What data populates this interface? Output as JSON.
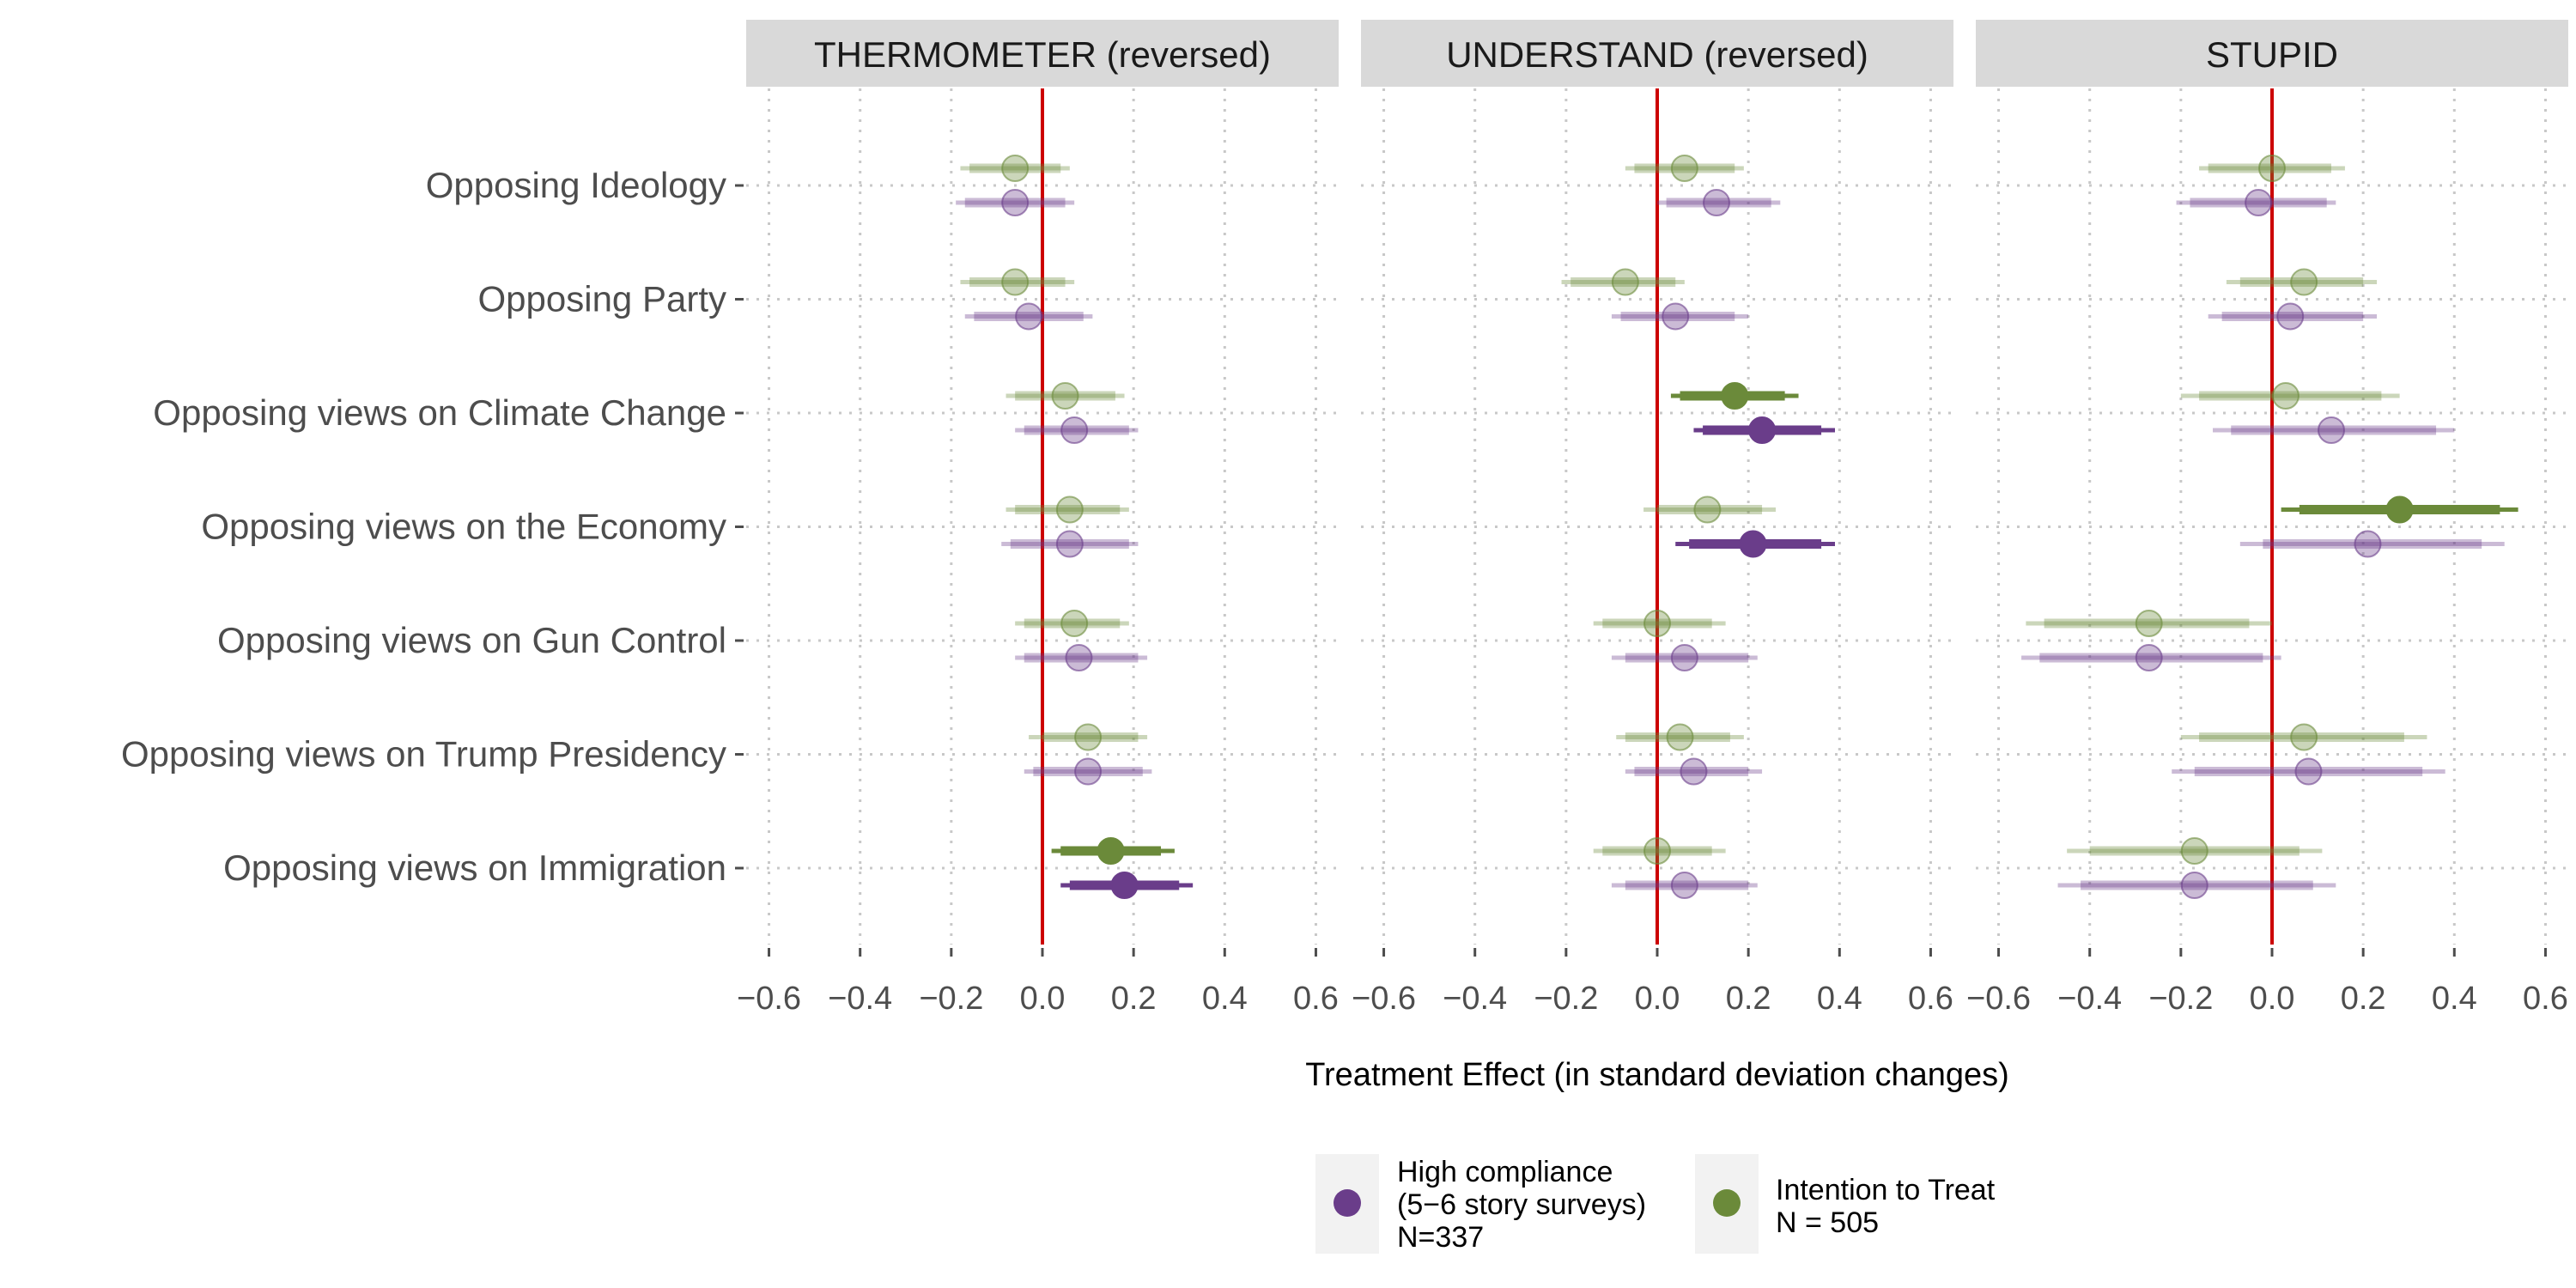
{
  "chart_data": {
    "type": "scatter",
    "subtype": "forest-plot (point estimate with 90% and 95% interval bars)",
    "panels": [
      {
        "title": "THERMOMETER (reversed)"
      },
      {
        "title": "UNDERSTAND (reversed)"
      },
      {
        "title": "STUPID"
      }
    ],
    "categories": [
      "Opposing Ideology",
      "Opposing Party",
      "Opposing views on Climate Change",
      "Opposing views on the Economy",
      "Opposing views on Gun Control",
      "Opposing views on Trump Presidency",
      "Opposing views on Immigration"
    ],
    "xlabel": "Treatment Effect (in standard deviation changes)",
    "xlim": [
      -0.65,
      0.65
    ],
    "xticks": [
      "−0.6",
      "−0.4",
      "−0.2",
      "0.0",
      "0.2",
      "0.4",
      "0.6"
    ],
    "xtick_values": [
      -0.6,
      -0.4,
      -0.2,
      0.0,
      0.2,
      0.4,
      0.6
    ],
    "reference_line": {
      "x": 0,
      "color": "#cc0000"
    },
    "grid": "dotted",
    "legend_position": "bottom",
    "series": [
      {
        "name": "High compliance\n(5−6 story surveys)\nN=337",
        "legend_lines": [
          "High compliance",
          "(5−6 story surveys)",
          "N=337"
        ],
        "color": "#6a3d8a",
        "estimates": [
          [
            [
              -0.06,
              -0.17,
              0.05,
              -0.19,
              0.07
            ],
            [
              -0.03,
              -0.15,
              0.09,
              -0.17,
              0.11
            ],
            [
              0.07,
              -0.04,
              0.19,
              -0.06,
              0.21
            ],
            [
              0.06,
              -0.07,
              0.19,
              -0.09,
              0.21
            ],
            [
              0.08,
              -0.04,
              0.21,
              -0.06,
              0.23
            ],
            [
              0.1,
              -0.02,
              0.22,
              -0.04,
              0.24
            ],
            [
              0.18,
              0.06,
              0.3,
              0.04,
              0.33
            ]
          ],
          [
            [
              0.13,
              0.02,
              0.25,
              0.0,
              0.27
            ],
            [
              0.04,
              -0.08,
              0.17,
              -0.1,
              0.2
            ],
            [
              0.23,
              0.1,
              0.36,
              0.08,
              0.39
            ],
            [
              0.21,
              0.07,
              0.36,
              0.04,
              0.39
            ],
            [
              0.06,
              -0.07,
              0.2,
              -0.1,
              0.22
            ],
            [
              0.08,
              -0.05,
              0.2,
              -0.07,
              0.23
            ],
            [
              0.06,
              -0.07,
              0.2,
              -0.1,
              0.22
            ]
          ],
          [
            [
              -0.03,
              -0.18,
              0.12,
              -0.21,
              0.14
            ],
            [
              0.04,
              -0.11,
              0.2,
              -0.14,
              0.23
            ],
            [
              0.13,
              -0.09,
              0.36,
              -0.13,
              0.4
            ],
            [
              0.21,
              -0.02,
              0.46,
              -0.07,
              0.51
            ],
            [
              -0.27,
              -0.51,
              -0.02,
              -0.55,
              0.02
            ],
            [
              0.08,
              -0.17,
              0.33,
              -0.22,
              0.38
            ],
            [
              -0.17,
              -0.42,
              0.09,
              -0.47,
              0.14
            ]
          ]
        ],
        "significant": [
          [
            false,
            false,
            false,
            false,
            false,
            false,
            true
          ],
          [
            false,
            false,
            true,
            true,
            false,
            false,
            false
          ],
          [
            false,
            false,
            false,
            false,
            false,
            false,
            false
          ]
        ]
      },
      {
        "name": "Intention to Treat\nN = 505",
        "legend_lines": [
          "Intention to Treat",
          "N = 505"
        ],
        "color": "#6b8a3a",
        "estimates": [
          [
            [
              -0.06,
              -0.16,
              0.04,
              -0.18,
              0.06
            ],
            [
              -0.06,
              -0.16,
              0.05,
              -0.18,
              0.07
            ],
            [
              0.05,
              -0.06,
              0.16,
              -0.08,
              0.18
            ],
            [
              0.06,
              -0.06,
              0.17,
              -0.08,
              0.19
            ],
            [
              0.07,
              -0.04,
              0.17,
              -0.06,
              0.19
            ],
            [
              0.1,
              0.0,
              0.21,
              -0.03,
              0.23
            ],
            [
              0.15,
              0.04,
              0.26,
              0.02,
              0.29
            ]
          ],
          [
            [
              0.06,
              -0.05,
              0.17,
              -0.07,
              0.19
            ],
            [
              -0.07,
              -0.19,
              0.04,
              -0.21,
              0.06
            ],
            [
              0.17,
              0.05,
              0.28,
              0.03,
              0.31
            ],
            [
              0.11,
              0.0,
              0.23,
              -0.03,
              0.26
            ],
            [
              0.0,
              -0.12,
              0.12,
              -0.14,
              0.15
            ],
            [
              0.05,
              -0.07,
              0.16,
              -0.09,
              0.19
            ],
            [
              0.0,
              -0.12,
              0.12,
              -0.14,
              0.15
            ]
          ],
          [
            [
              0.0,
              -0.14,
              0.13,
              -0.16,
              0.16
            ],
            [
              0.07,
              -0.07,
              0.2,
              -0.1,
              0.23
            ],
            [
              0.03,
              -0.16,
              0.24,
              -0.2,
              0.28
            ],
            [
              0.28,
              0.06,
              0.5,
              0.02,
              0.54
            ],
            [
              -0.27,
              -0.5,
              -0.05,
              -0.54,
              0.0
            ],
            [
              0.07,
              -0.16,
              0.29,
              -0.2,
              0.34
            ],
            [
              -0.17,
              -0.4,
              0.06,
              -0.45,
              0.11
            ]
          ]
        ],
        "significant": [
          [
            false,
            false,
            false,
            false,
            false,
            false,
            true
          ],
          [
            false,
            false,
            true,
            false,
            false,
            false,
            false
          ],
          [
            false,
            false,
            false,
            true,
            false,
            false,
            false
          ]
        ]
      }
    ],
    "estimate_fields": [
      "estimate",
      "ci90_low",
      "ci90_high",
      "ci95_low",
      "ci95_high"
    ]
  }
}
